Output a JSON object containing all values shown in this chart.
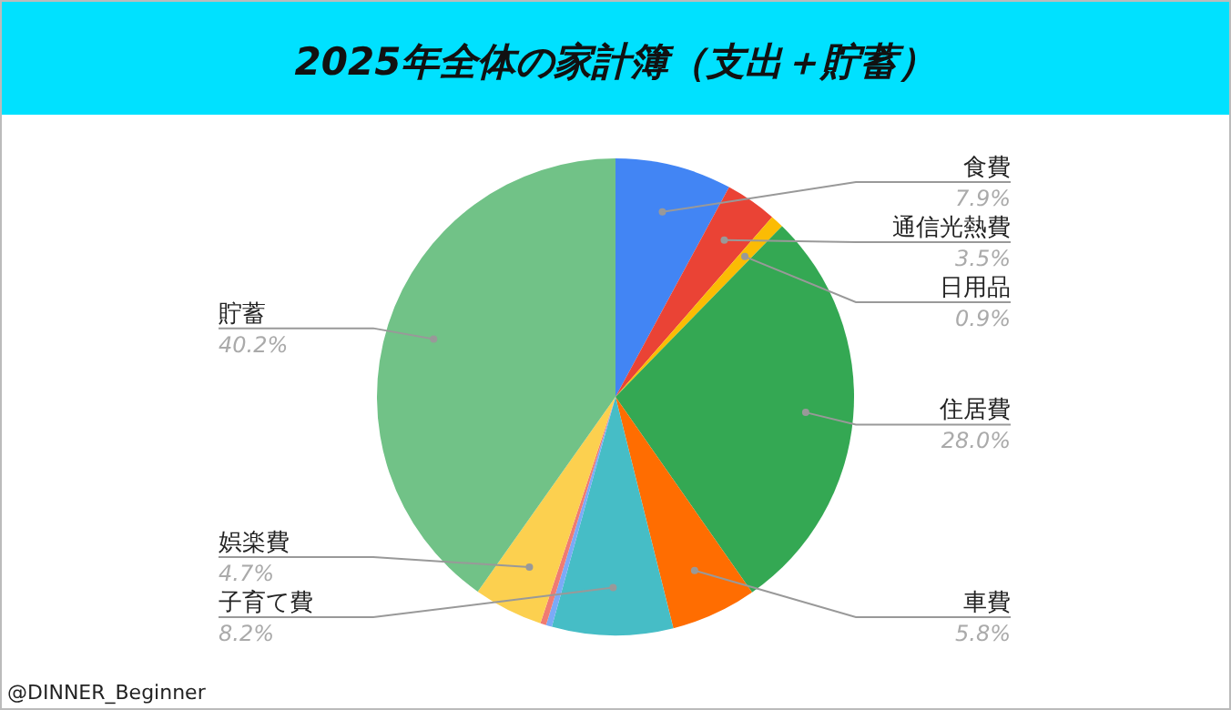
{
  "chart_data": {
    "type": "pie",
    "title": "2025年全体の家計簿（支出＋貯蓄）",
    "categories": [
      "食費",
      "通信光熱費",
      "日用品",
      "住居費",
      "車費",
      "子育て費",
      null,
      null,
      "娯楽費",
      "貯蓄"
    ],
    "values": [
      7.9,
      3.5,
      0.9,
      28.0,
      5.8,
      8.2,
      0.4,
      0.4,
      4.7,
      40.2
    ],
    "colors": [
      "#4285f4",
      "#ea4335",
      "#fbbc04",
      "#34a853",
      "#ff6d01",
      "#46bdc6",
      "#7baaf7",
      "#f07b72",
      "#fcd04f",
      "#71c287"
    ],
    "value_labels": [
      "7.9%",
      "3.5%",
      "0.9%",
      "28.0%",
      "5.8%",
      "8.2%",
      null,
      null,
      "4.7%",
      "40.2%"
    ],
    "annotations": [
      "@DINNER_Beginner"
    ]
  }
}
